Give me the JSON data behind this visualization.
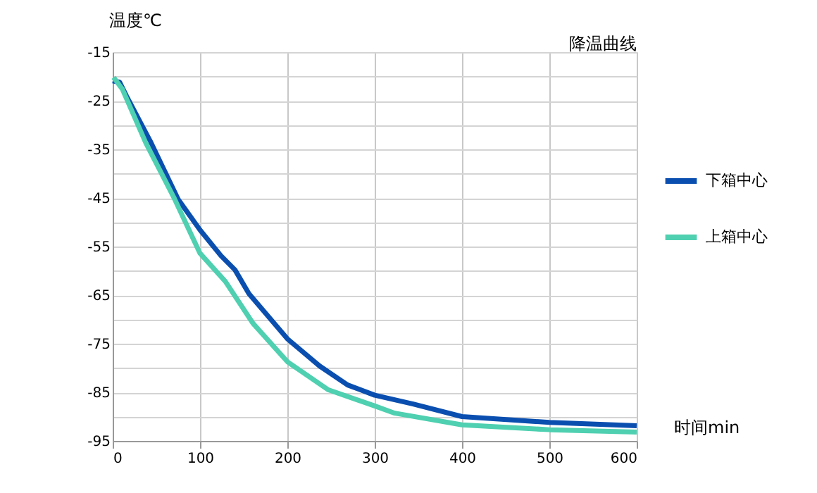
{
  "chart_data": {
    "type": "line",
    "title": "降温曲线",
    "xlabel": "时间min",
    "ylabel": "温度℃",
    "xlim": [
      0,
      600
    ],
    "xticks": [
      0,
      100,
      200,
      300,
      400,
      500,
      600
    ],
    "ylim": [
      -95,
      -15
    ],
    "yticks": [
      -15,
      {
        "value": -20,
        "label": null
      },
      -25,
      {
        "value": -30,
        "label": null
      },
      -35,
      {
        "value": -40,
        "label": null
      },
      -45,
      {
        "value": -50,
        "label": null
      },
      -55,
      {
        "value": -60,
        "label": null
      },
      -65,
      {
        "value": -70,
        "label": null
      },
      -75,
      {
        "value": -80,
        "label": null
      },
      -85,
      {
        "value": -90,
        "label": null
      },
      -95
    ],
    "grid": true,
    "legend": "right",
    "marker": "none",
    "line_style": "solid",
    "series": [
      {
        "name": "下箱中心",
        "color": "#0a4fb0",
        "x": [
          0,
          8,
          16,
          43,
          75,
          100,
          124,
          140,
          156,
          200,
          237,
          269,
          300,
          344,
          400,
          500,
          600
        ],
        "values": [
          -20.9,
          -21.2,
          -24.1,
          -33.3,
          -45.3,
          -51.6,
          -56.9,
          -59.8,
          -64.7,
          -74.0,
          -79.6,
          -83.5,
          -85.6,
          -87.4,
          -90.0,
          -91.2,
          -91.9
        ]
      },
      {
        "name": "上箱中心",
        "color": "#4fd0b0",
        "x": [
          1,
          11,
          38,
          70,
          100,
          129,
          161,
          200,
          247,
          300,
          323,
          400,
          500,
          600
        ],
        "values": [
          -20.2,
          -22.6,
          -33.7,
          -44.9,
          -56.4,
          -62.2,
          -70.9,
          -78.7,
          -84.5,
          -87.8,
          -89.3,
          -91.7,
          -92.7,
          -93.2
        ]
      }
    ]
  }
}
